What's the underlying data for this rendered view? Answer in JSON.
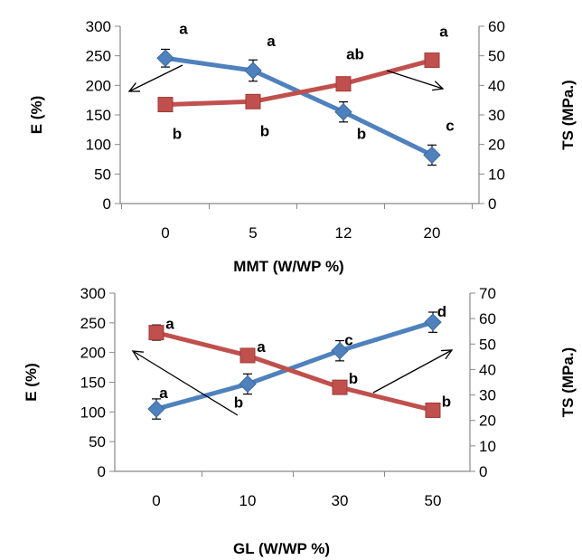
{
  "chart_data": [
    {
      "type": "line",
      "categories": [
        "0",
        "5",
        "12",
        "20"
      ],
      "xlabel": "MMT  (W/WP %)",
      "ylabel": "E (%)",
      "y2label": "TS  (MPa.)",
      "ylim": [
        0,
        300
      ],
      "yticks": [
        0,
        50,
        100,
        150,
        200,
        250,
        300
      ],
      "y2lim": [
        0,
        60
      ],
      "y2ticks": [
        0,
        10,
        20,
        30,
        40,
        50,
        60
      ],
      "grid": false,
      "series": [
        {
          "axis": "left",
          "color": "#4F81BD",
          "marker": "diamond",
          "values": [
            246,
            225,
            155,
            82
          ],
          "errors": [
            15,
            18,
            17,
            17
          ],
          "letters": [
            "a",
            "a",
            "b",
            "c"
          ]
        },
        {
          "axis": "right",
          "color": "#C0504D",
          "marker": "square",
          "values": [
            33.5,
            34.5,
            40.5,
            48.5
          ],
          "errors": [
            1,
            1,
            1,
            1
          ],
          "letters": [
            "b",
            "b",
            "ab",
            "a"
          ]
        }
      ]
    },
    {
      "type": "line",
      "categories": [
        "0",
        "10",
        "30",
        "50"
      ],
      "xlabel": "GL  (W/WP %)",
      "ylabel": "E  (%)",
      "y2label": "TS (MPa.)",
      "ylim": [
        0,
        300
      ],
      "yticks": [
        0,
        50,
        100,
        150,
        200,
        250,
        300
      ],
      "y2lim": [
        0,
        70
      ],
      "y2ticks": [
        0,
        10,
        20,
        30,
        40,
        50,
        60,
        70
      ],
      "grid": false,
      "series": [
        {
          "axis": "left",
          "color": "#4F81BD",
          "marker": "diamond",
          "values": [
            105,
            147,
            203,
            251
          ],
          "errors": [
            17,
            17,
            17,
            17
          ],
          "letters": [
            "a",
            "b",
            "c",
            "d"
          ]
        },
        {
          "axis": "right",
          "color": "#C0504D",
          "marker": "square",
          "values": [
            54.5,
            45.5,
            33,
            24
          ],
          "errors": [
            3,
            1,
            1,
            1
          ],
          "letters": [
            "a",
            "a",
            "b",
            "b"
          ]
        }
      ]
    }
  ]
}
